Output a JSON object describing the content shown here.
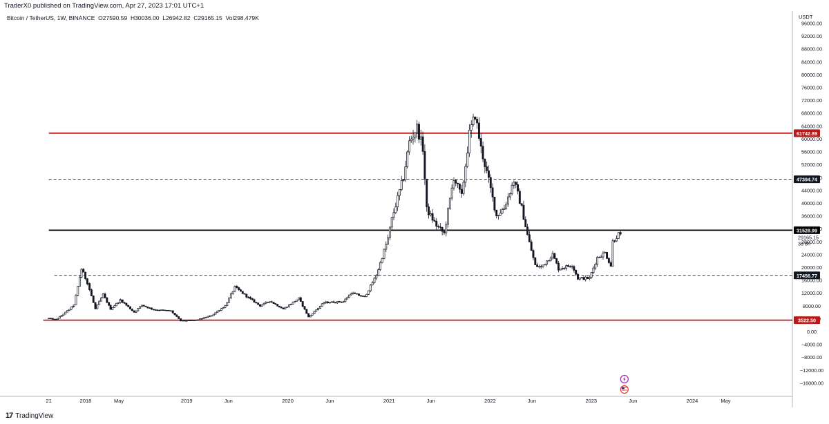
{
  "header": {
    "publisher": "TraderX0 published on TradingView.com, Apr 27, 2023 17:01 UTC+1"
  },
  "legend": {
    "symbol": "Bitcoin / TetherUS, 1W, BINANCE",
    "open_label": "O",
    "open": "27590.59",
    "high_label": "H",
    "high": "30036.00",
    "low_label": "L",
    "low": "26942.82",
    "close_label": "C",
    "close": "29165.15",
    "vol_label": "Vol",
    "vol": "298.479K"
  },
  "footer": {
    "brand": "TradingView",
    "logo_icon": "tradingview-logo-icon"
  },
  "chart_data": {
    "type": "candlestick",
    "currency": "USDT",
    "ylim": [
      -16000,
      96000
    ],
    "y_ticks": [
      -16000,
      -12000,
      -8000,
      -4000,
      0,
      4000,
      8000,
      12000,
      16000,
      20000,
      24000,
      28000,
      32000,
      36000,
      40000,
      44000,
      48000,
      52000,
      56000,
      60000,
      64000,
      68000,
      72000,
      76000,
      80000,
      84000,
      88000,
      92000,
      96000
    ],
    "y_tick_labels": [
      "−16000.00",
      "−12000.00",
      "−8000.00",
      "−4000.00",
      "0.00",
      "4000.00",
      "8000.00",
      "12000.00",
      "16000.00",
      "20000.00",
      "24000.00",
      "28000.00",
      "32000.00",
      "36000.00",
      "40000.00",
      "44000.00",
      "48000.00",
      "52000.00",
      "56000.00",
      "60000.00",
      "64000.00",
      "68000.00",
      "72000.00",
      "76000.00",
      "80000.00",
      "84000.00",
      "88000.00",
      "92000.00",
      "96000.00"
    ],
    "x_axis_labels": [
      {
        "label": "21",
        "date": "2017-08-21"
      },
      {
        "label": "2018",
        "date": "2018-01-01"
      },
      {
        "label": "May",
        "date": "2018-05-01"
      },
      {
        "label": "2019",
        "date": "2019-01-01"
      },
      {
        "label": "Jun",
        "date": "2019-06-01"
      },
      {
        "label": "2020",
        "date": "2020-01-01"
      },
      {
        "label": "Jun",
        "date": "2020-06-01"
      },
      {
        "label": "2021",
        "date": "2021-01-01"
      },
      {
        "label": "Jun",
        "date": "2021-06-01"
      },
      {
        "label": "2022",
        "date": "2022-01-01"
      },
      {
        "label": "Jun",
        "date": "2022-06-01"
      },
      {
        "label": "2023",
        "date": "2023-01-01"
      },
      {
        "label": "Jun",
        "date": "2023-06-01"
      },
      {
        "label": "2024",
        "date": "2024-01-01"
      },
      {
        "label": "May",
        "date": "2024-05-01"
      }
    ],
    "horizontal_levels": [
      {
        "value": 61742.89,
        "label": "61742.89",
        "style": "solid",
        "color": "#b71c1c",
        "start_date": "2017-08-21"
      },
      {
        "value": 47394.74,
        "label": "47394.74",
        "style": "dashed",
        "color": "#131722",
        "start_date": "2017-08-21"
      },
      {
        "value": 31528.99,
        "label": "31528.99",
        "style": "solid",
        "color": "#000000",
        "start_date": "2017-08-21"
      },
      {
        "value": 17456.77,
        "label": "17456.77",
        "style": "dashed",
        "color": "#131722",
        "start_date": "2017-09-10"
      },
      {
        "value": 3522.5,
        "label": "3522.50",
        "style": "solid",
        "color": "#b71c1c",
        "start_date": "2017-08-01"
      }
    ],
    "last_price": {
      "value": 29165.15,
      "label": "29165.15",
      "countdown": "3d 8h"
    },
    "price_path": [
      {
        "date": "2017-08-21",
        "price": 4100
      },
      {
        "date": "2017-09-15",
        "price": 3700
      },
      {
        "date": "2017-10-20",
        "price": 5900
      },
      {
        "date": "2017-11-20",
        "price": 8200
      },
      {
        "date": "2017-12-17",
        "price": 19500
      },
      {
        "date": "2018-01-08",
        "price": 15000
      },
      {
        "date": "2018-02-05",
        "price": 7000
      },
      {
        "date": "2018-03-05",
        "price": 11500
      },
      {
        "date": "2018-04-01",
        "price": 7000
      },
      {
        "date": "2018-05-07",
        "price": 9800
      },
      {
        "date": "2018-06-25",
        "price": 6000
      },
      {
        "date": "2018-07-23",
        "price": 8200
      },
      {
        "date": "2018-09-03",
        "price": 6800
      },
      {
        "date": "2018-11-05",
        "price": 6400
      },
      {
        "date": "2018-12-10",
        "price": 3300
      },
      {
        "date": "2019-02-04",
        "price": 3500
      },
      {
        "date": "2019-04-01",
        "price": 5000
      },
      {
        "date": "2019-05-20",
        "price": 8000
      },
      {
        "date": "2019-06-24",
        "price": 13800
      },
      {
        "date": "2019-08-12",
        "price": 10500
      },
      {
        "date": "2019-09-23",
        "price": 8000
      },
      {
        "date": "2019-10-28",
        "price": 9500
      },
      {
        "date": "2019-12-16",
        "price": 7000
      },
      {
        "date": "2020-02-10",
        "price": 10300
      },
      {
        "date": "2020-03-16",
        "price": 4500
      },
      {
        "date": "2020-05-11",
        "price": 9000
      },
      {
        "date": "2020-07-20",
        "price": 9300
      },
      {
        "date": "2020-08-17",
        "price": 12000
      },
      {
        "date": "2020-10-05",
        "price": 10700
      },
      {
        "date": "2020-11-16",
        "price": 17500
      },
      {
        "date": "2020-12-28",
        "price": 29000
      },
      {
        "date": "2021-01-11",
        "price": 35000
      },
      {
        "date": "2021-02-22",
        "price": 48000
      },
      {
        "date": "2021-03-15",
        "price": 59000
      },
      {
        "date": "2021-04-12",
        "price": 63500
      },
      {
        "date": "2021-05-03",
        "price": 57000
      },
      {
        "date": "2021-05-17",
        "price": 38000
      },
      {
        "date": "2021-06-21",
        "price": 33000
      },
      {
        "date": "2021-07-19",
        "price": 30500
      },
      {
        "date": "2021-08-23",
        "price": 48000
      },
      {
        "date": "2021-09-20",
        "price": 42000
      },
      {
        "date": "2021-10-18",
        "price": 61500
      },
      {
        "date": "2021-11-08",
        "price": 67500
      },
      {
        "date": "2021-11-29",
        "price": 57000
      },
      {
        "date": "2021-12-27",
        "price": 47000
      },
      {
        "date": "2022-01-24",
        "price": 36000
      },
      {
        "date": "2022-02-21",
        "price": 38500
      },
      {
        "date": "2022-03-28",
        "price": 47000
      },
      {
        "date": "2022-04-25",
        "price": 38500
      },
      {
        "date": "2022-05-16",
        "price": 30000
      },
      {
        "date": "2022-06-13",
        "price": 20500
      },
      {
        "date": "2022-07-04",
        "price": 20000
      },
      {
        "date": "2022-08-15",
        "price": 24000
      },
      {
        "date": "2022-09-05",
        "price": 19500
      },
      {
        "date": "2022-10-24",
        "price": 20700
      },
      {
        "date": "2022-11-14",
        "price": 16500
      },
      {
        "date": "2022-12-26",
        "price": 16600
      },
      {
        "date": "2023-01-23",
        "price": 23000
      },
      {
        "date": "2023-02-20",
        "price": 24500
      },
      {
        "date": "2023-03-13",
        "price": 20500
      },
      {
        "date": "2023-03-20",
        "price": 28000
      },
      {
        "date": "2023-04-10",
        "price": 30300
      },
      {
        "date": "2023-04-24",
        "price": 29165
      }
    ],
    "event_icons": [
      {
        "name": "lightning-event-icon",
        "date": "2023-05-01"
      },
      {
        "name": "us-flag-event-icon",
        "date": "2023-05-01"
      }
    ]
  }
}
